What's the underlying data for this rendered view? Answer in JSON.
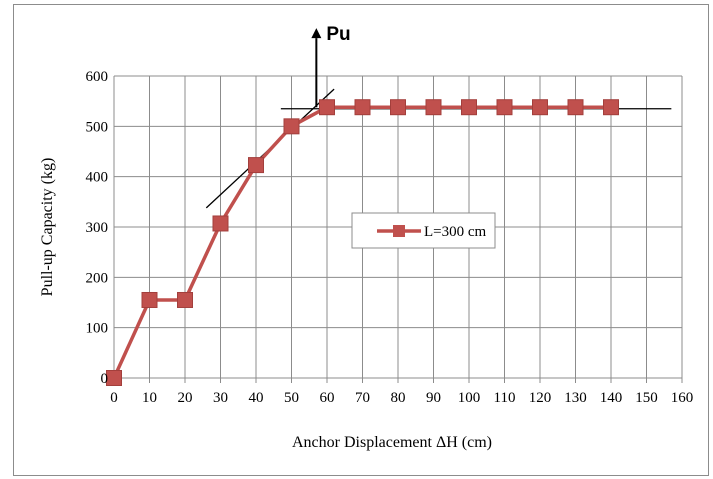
{
  "chart_data": {
    "type": "line",
    "xlabel": "Anchor Displacement ΔH (cm)",
    "ylabel": "Pull-up Capacity (kg)",
    "xlim": [
      0,
      160
    ],
    "ylim": [
      0,
      600
    ],
    "x_ticks": [
      0,
      10,
      20,
      30,
      40,
      50,
      60,
      70,
      80,
      90,
      100,
      110,
      120,
      130,
      140,
      150,
      160
    ],
    "y_ticks": [
      0,
      100,
      200,
      300,
      400,
      500,
      600
    ],
    "grid": true,
    "legend_position": "center-right",
    "series": [
      {
        "name": "L=300 cm",
        "color": "#c0504d",
        "marker": "square",
        "x": [
          0,
          10,
          20,
          30,
          40,
          50,
          60,
          70,
          80,
          90,
          100,
          110,
          120,
          130,
          140
        ],
        "y": [
          0,
          155,
          155,
          307,
          423,
          500,
          538,
          538,
          538,
          538,
          538,
          538,
          538,
          538,
          538
        ]
      }
    ],
    "tangent_lines": [
      {
        "x": [
          26,
          62
        ],
        "y": [
          338,
          574
        ]
      },
      {
        "x": [
          47,
          157
        ],
        "y": [
          535,
          535
        ]
      }
    ],
    "annotation": {
      "label": "Pu",
      "arrow_x": 57,
      "arrow_from_y": 538,
      "arrow_to_y": 695
    }
  }
}
